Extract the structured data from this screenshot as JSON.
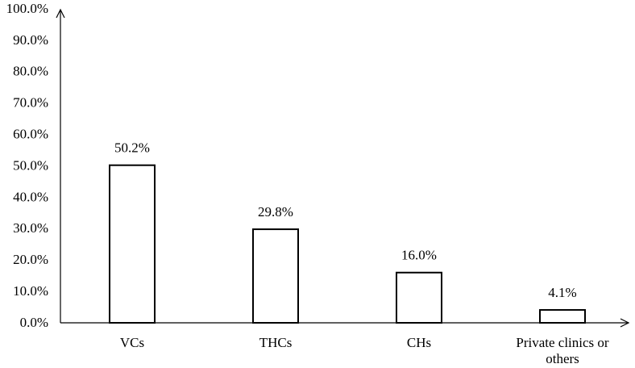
{
  "chart_data": {
    "type": "bar",
    "categories": [
      "VCs",
      "THCs",
      "CHs",
      "Private clinics or others"
    ],
    "values": [
      50.2,
      29.8,
      16.0,
      4.1
    ],
    "value_labels": [
      "50.2%",
      "29.8%",
      "16.0%",
      "4.1%"
    ],
    "color": "#ffffff",
    "edge_color": "#000000",
    "ylim": [
      0,
      100
    ],
    "yticks": [
      {
        "value": 0,
        "label": "0.0%"
      },
      {
        "value": 10,
        "label": "10.0%"
      },
      {
        "value": 20,
        "label": "20.0%"
      },
      {
        "value": 30,
        "label": "30.0%"
      },
      {
        "value": 40,
        "label": "40.0%"
      },
      {
        "value": 50,
        "label": "50.0%"
      },
      {
        "value": 60,
        "label": "60.0%"
      },
      {
        "value": 70,
        "label": "70.0%"
      },
      {
        "value": 80,
        "label": "80.0%"
      },
      {
        "value": 90,
        "label": "90.0%"
      },
      {
        "value": 100,
        "label": "100.0%"
      }
    ],
    "grid": false
  }
}
